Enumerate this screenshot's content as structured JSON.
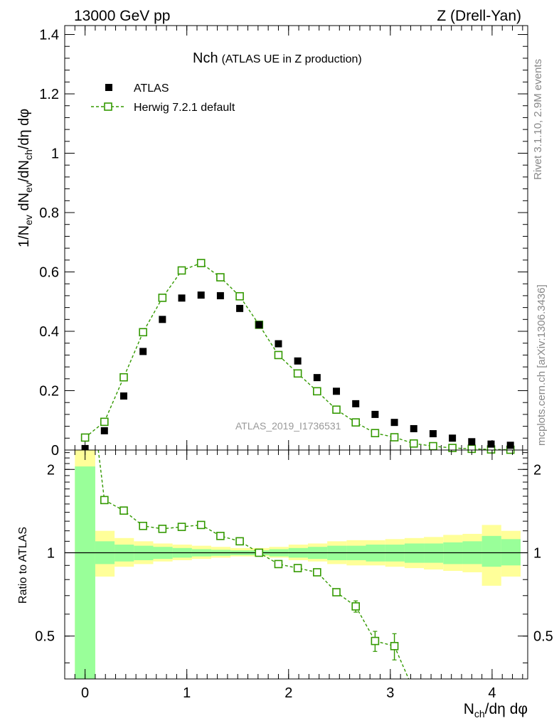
{
  "header": {
    "left": "13000 GeV pp",
    "right": "Z (Drell-Yan)"
  },
  "side": {
    "rivet": "Rivet 3.1.10,  2.9M events",
    "mcplots": "mcplots.cern.ch [arXiv:1306.3436]"
  },
  "colors": {
    "mc": "#339900",
    "band_inner": "#99ff99",
    "band_outer": "#ffff99",
    "data": "#000000"
  },
  "chart_data": [
    {
      "type": "scatter",
      "panel": "main",
      "title_main": "Nch",
      "title_sub": "(ATLAS UE in Z production)",
      "ylabel": "1/N_ev dN_ev/dN_ch/dη dφ",
      "xlabel": "N_ch/dη dφ",
      "analysis_tag": "ATLAS_2019_I1736531",
      "xlim": [
        -0.2,
        4.35
      ],
      "ylim": [
        0,
        1.43
      ],
      "yticks": [
        0,
        0.2,
        0.4,
        0.6,
        0.8,
        1,
        1.2,
        1.4
      ],
      "ytick_labels": [
        "0",
        "0.2",
        "0.4",
        "0.6",
        "0.8",
        "1",
        "1.2",
        "1.4"
      ],
      "legend_position": "top-left",
      "series": [
        {
          "name": "ATLAS",
          "style": "filled-square",
          "x": [
            0.0,
            0.19,
            0.38,
            0.57,
            0.76,
            0.95,
            1.14,
            1.33,
            1.52,
            1.71,
            1.9,
            2.09,
            2.28,
            2.47,
            2.66,
            2.85,
            3.04,
            3.23,
            3.42,
            3.61,
            3.8,
            3.99,
            4.18
          ],
          "y": [
            0.005,
            0.065,
            0.182,
            0.332,
            0.44,
            0.512,
            0.522,
            0.52,
            0.477,
            0.422,
            0.358,
            0.3,
            0.244,
            0.198,
            0.156,
            0.12,
            0.093,
            0.072,
            0.055,
            0.04,
            0.028,
            0.02,
            0.016
          ]
        },
        {
          "name": "Herwig 7.2.1 default",
          "style": "open-square-dashed",
          "x": [
            0.0,
            0.19,
            0.38,
            0.57,
            0.76,
            0.95,
            1.14,
            1.33,
            1.52,
            1.71,
            1.9,
            2.09,
            2.28,
            2.47,
            2.66,
            2.85,
            3.04,
            3.23,
            3.42,
            3.61,
            3.8,
            3.99,
            4.18
          ],
          "y": [
            0.042,
            0.095,
            0.245,
            0.397,
            0.513,
            0.605,
            0.63,
            0.582,
            0.518,
            0.422,
            0.32,
            0.258,
            0.198,
            0.136,
            0.093,
            0.057,
            0.043,
            0.022,
            0.013,
            0.007,
            0.004,
            0.002,
            0.001
          ]
        }
      ]
    },
    {
      "type": "line",
      "panel": "ratio",
      "ylabel": "Ratio to ATLAS",
      "ylim": [
        0.35,
        2.35
      ],
      "yticks": [
        0.5,
        1,
        2
      ],
      "ytick_labels": [
        "0.5",
        "1",
        "2"
      ],
      "xticks": [
        0,
        1,
        2,
        3,
        4
      ],
      "xtick_labels": [
        "0",
        "1",
        "2",
        "3",
        "4"
      ],
      "band_x_edges": [
        -0.1,
        0.1,
        0.29,
        0.48,
        0.67,
        0.86,
        1.05,
        1.24,
        1.43,
        1.62,
        1.81,
        2.0,
        2.19,
        2.38,
        2.57,
        2.76,
        2.95,
        3.14,
        3.33,
        3.52,
        3.71,
        3.9,
        4.09,
        4.28
      ],
      "band_outer": [
        [
          0.35,
          2.35
        ],
        [
          0.82,
          1.2
        ],
        [
          0.89,
          1.13
        ],
        [
          0.91,
          1.1
        ],
        [
          0.93,
          1.08
        ],
        [
          0.94,
          1.07
        ],
        [
          0.95,
          1.06
        ],
        [
          0.96,
          1.05
        ],
        [
          0.97,
          1.04
        ],
        [
          0.97,
          1.04
        ],
        [
          0.96,
          1.05
        ],
        [
          0.94,
          1.07
        ],
        [
          0.93,
          1.08
        ],
        [
          0.91,
          1.1
        ],
        [
          0.9,
          1.11
        ],
        [
          0.9,
          1.11
        ],
        [
          0.89,
          1.12
        ],
        [
          0.88,
          1.13
        ],
        [
          0.87,
          1.14
        ],
        [
          0.86,
          1.16
        ],
        [
          0.85,
          1.17
        ],
        [
          0.76,
          1.26
        ],
        [
          0.82,
          1.2
        ]
      ],
      "band_inner": [
        [
          0.35,
          2.05
        ],
        [
          0.91,
          1.1
        ],
        [
          0.93,
          1.07
        ],
        [
          0.94,
          1.06
        ],
        [
          0.95,
          1.05
        ],
        [
          0.96,
          1.04
        ],
        [
          0.97,
          1.03
        ],
        [
          0.975,
          1.025
        ],
        [
          0.98,
          1.02
        ],
        [
          0.98,
          1.02
        ],
        [
          0.97,
          1.03
        ],
        [
          0.96,
          1.04
        ],
        [
          0.95,
          1.05
        ],
        [
          0.94,
          1.06
        ],
        [
          0.94,
          1.06
        ],
        [
          0.93,
          1.07
        ],
        [
          0.93,
          1.07
        ],
        [
          0.92,
          1.08
        ],
        [
          0.92,
          1.08
        ],
        [
          0.91,
          1.09
        ],
        [
          0.91,
          1.1
        ],
        [
          0.89,
          1.15
        ],
        [
          0.9,
          1.12
        ]
      ],
      "series": [
        {
          "name": "Herwig 7.2.1 default / ATLAS",
          "x": [
            0.19,
            0.38,
            0.57,
            0.76,
            0.95,
            1.14,
            1.33,
            1.52,
            1.71,
            1.9,
            2.09,
            2.28,
            2.47,
            2.66,
            2.85,
            3.04
          ],
          "y": [
            1.55,
            1.42,
            1.25,
            1.22,
            1.24,
            1.26,
            1.15,
            1.1,
            1.0,
            0.91,
            0.88,
            0.85,
            0.72,
            0.64,
            0.48,
            0.46
          ],
          "yerr": [
            0.04,
            0.02,
            0.02,
            0.02,
            0.02,
            0.02,
            0.02,
            0.02,
            0.01,
            0.01,
            0.01,
            0.01,
            0.02,
            0.03,
            0.04,
            0.05
          ],
          "line_from": [
            [
              0.13,
              2.35
            ],
            [
              0.19,
              1.55
            ]
          ],
          "line_to": [
            [
              3.04,
              0.46
            ],
            [
              3.18,
              0.35
            ]
          ]
        }
      ]
    }
  ]
}
